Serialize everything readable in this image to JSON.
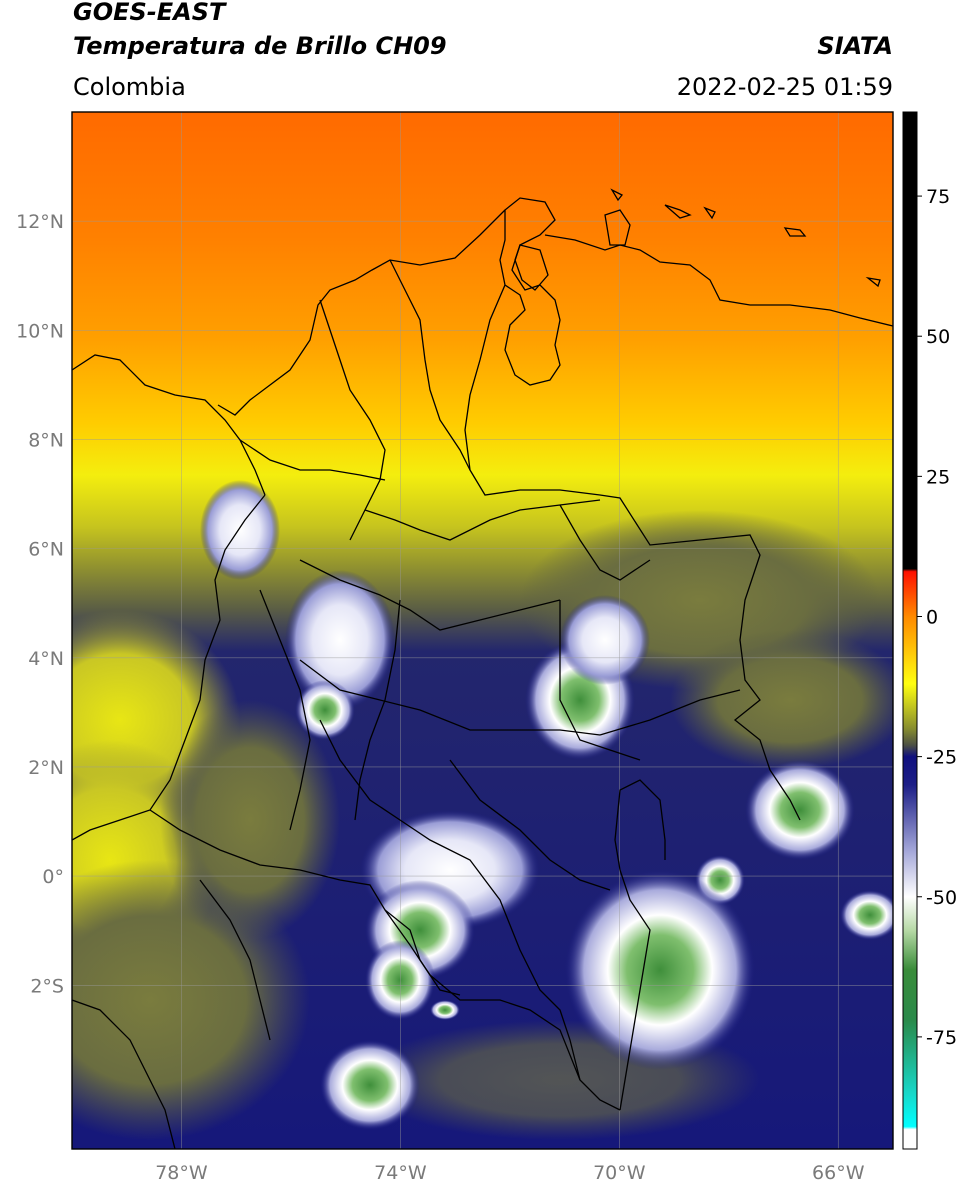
{
  "header": {
    "satellite": "GOES-EAST",
    "product": "Temperatura de Brillo CH09",
    "source": "SIATA",
    "region": "Colombia",
    "timestamp": "2022-02-25 01:59"
  },
  "map": {
    "lon_range": [
      -80,
      -65
    ],
    "lat_range": [
      -5,
      14
    ],
    "lat_ticks": [
      {
        "value": 12,
        "label": "12°N"
      },
      {
        "value": 10,
        "label": "10°N"
      },
      {
        "value": 8,
        "label": "8°N"
      },
      {
        "value": 6,
        "label": "6°N"
      },
      {
        "value": 4,
        "label": "4°N"
      },
      {
        "value": 2,
        "label": "2°N"
      },
      {
        "value": 0,
        "label": "0°"
      },
      {
        "value": -2,
        "label": "2°S"
      }
    ],
    "lon_ticks": [
      {
        "value": -78,
        "label": "78°W"
      },
      {
        "value": -74,
        "label": "74°W"
      },
      {
        "value": -70,
        "label": "70°W"
      },
      {
        "value": -66,
        "label": "66°W"
      }
    ],
    "colors": {
      "warm_north": "#ff7a00",
      "yellow": "#f2ee10",
      "olive": "#787a3a",
      "navy": "#14177a",
      "white": "#ffffff",
      "green": "#2f8a3a",
      "border": "#000000"
    }
  },
  "colorbar": {
    "range": [
      -95,
      90
    ],
    "ticks": [
      {
        "value": 75,
        "label": "75"
      },
      {
        "value": 50,
        "label": "50"
      },
      {
        "value": 25,
        "label": "25"
      },
      {
        "value": 0,
        "label": "0"
      },
      {
        "value": -25,
        "label": "-25"
      },
      {
        "value": -50,
        "label": "-50"
      },
      {
        "value": -75,
        "label": "-75"
      }
    ],
    "stops": [
      {
        "value": 90,
        "color": "#000000"
      },
      {
        "value": 8.5,
        "color": "#000000"
      },
      {
        "value": 8,
        "color": "#ff1000"
      },
      {
        "value": 0,
        "color": "#ff8a00"
      },
      {
        "value": -12,
        "color": "#ffff10"
      },
      {
        "value": -20,
        "color": "#878d2e"
      },
      {
        "value": -23,
        "color": "#4b4f45"
      },
      {
        "value": -25,
        "color": "#10107e"
      },
      {
        "value": -30,
        "color": "#1c1e87"
      },
      {
        "value": -42,
        "color": "#a6a9da"
      },
      {
        "value": -50,
        "color": "#ffffff"
      },
      {
        "value": -56,
        "color": "#b6d9a5"
      },
      {
        "value": -63,
        "color": "#3a8c3a"
      },
      {
        "value": -72,
        "color": "#2a8a4a"
      },
      {
        "value": -85,
        "color": "#18d7c8"
      },
      {
        "value": -91,
        "color": "#00ffff"
      },
      {
        "value": -91.5,
        "color": "#ffffff"
      },
      {
        "value": -95,
        "color": "#ffffff"
      }
    ]
  }
}
